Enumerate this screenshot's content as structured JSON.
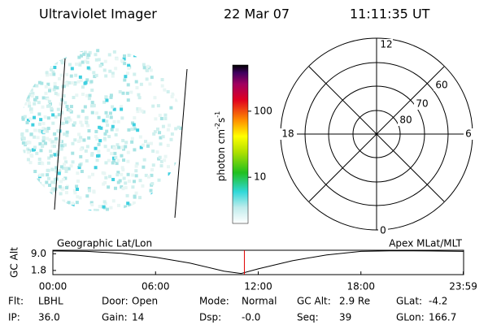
{
  "header": {
    "instrument": "Ultraviolet Imager",
    "date": "22 Mar 07",
    "time": "11:11:35 UT"
  },
  "colorbar": {
    "label": {
      "base": "photon cm",
      "exp1": "-2",
      "unit2": "s",
      "exp2": "-1"
    },
    "ylim": [
      2,
      500
    ],
    "log": true,
    "ticks": [
      10,
      100
    ]
  },
  "polar_grid": {
    "mlt_labels": [
      "12",
      "18",
      "6",
      "0"
    ],
    "lat_labels": [
      "60",
      "70",
      "80"
    ]
  },
  "altitude_plot": {
    "left_title": "Geographic Lat/Lon",
    "right_title": "Apex MLat/MLT",
    "ylabel": "GC Alt",
    "xlim": [
      0,
      24
    ],
    "ylim": [
      0,
      10.5
    ],
    "xticks": [
      {
        "value": 0,
        "label": "00:00"
      },
      {
        "value": 6,
        "label": "06:00"
      },
      {
        "value": 12,
        "label": "12:00"
      },
      {
        "value": 18,
        "label": "18:00"
      },
      {
        "value": 23.98,
        "label": "23:59"
      }
    ],
    "yticks": [
      {
        "value": 9,
        "label": "9.0"
      },
      1.8
    ],
    "x": [
      0,
      2,
      4,
      6,
      8,
      10,
      11,
      12,
      14,
      16,
      18,
      20,
      22,
      24
    ],
    "values": [
      10.2,
      10,
      9.2,
      7.5,
      5,
      1.5,
      0.5,
      2.5,
      6,
      8.5,
      10,
      10.3,
      10.2,
      10
    ],
    "marker_time": 11.19,
    "marker_color": "#e00000"
  },
  "status": [
    [
      [
        "Flt:",
        "LBHL"
      ],
      [
        "Door:",
        "Open"
      ],
      [
        "Mode:",
        "Normal"
      ],
      [
        "GC Alt:",
        "2.9 Re"
      ],
      [
        "GLat:",
        "-4.2"
      ]
    ],
    [
      [
        "IP:",
        "36.0"
      ],
      [
        "Gain:",
        "14"
      ],
      [
        "Dsp:",
        "-0.0"
      ],
      [
        "Seq:",
        "39"
      ],
      [
        "GLon:",
        "166.7"
      ]
    ]
  ]
}
